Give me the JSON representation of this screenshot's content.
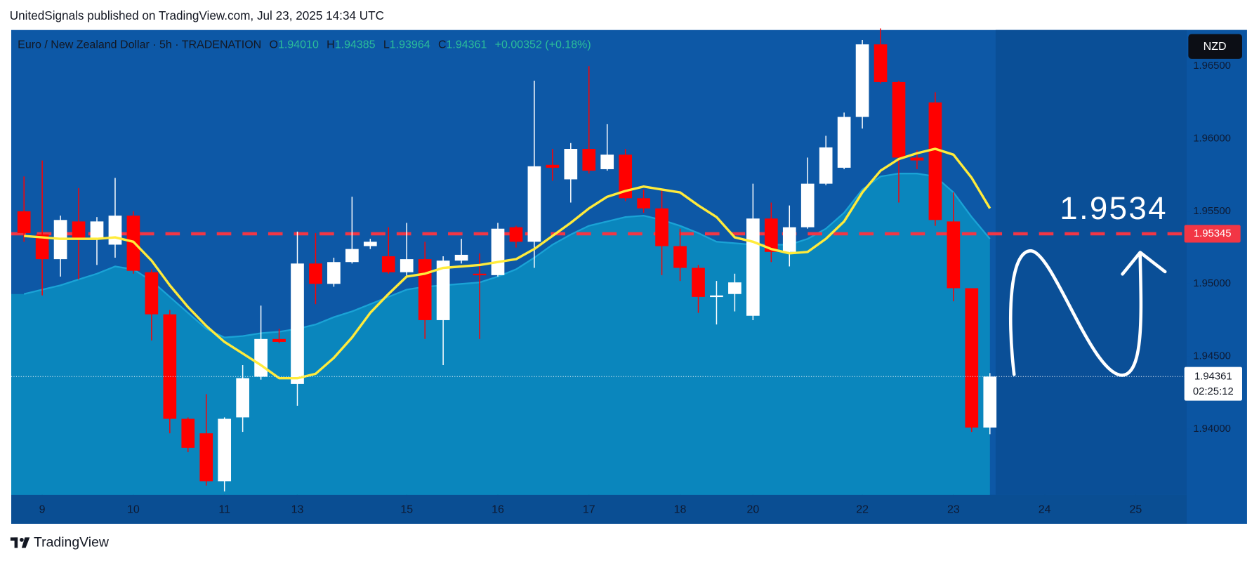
{
  "chart_data": {
    "type": "candlestick",
    "header_text": "UnitedSignals published on TradingView.com, Jul 23, 2025 14:34 UTC",
    "symbol_label": "Euro / New Zealand Dollar · 5h · TRADENATION",
    "legend": {
      "o_label": "O",
      "open": "1.94010",
      "h_label": "H",
      "high": "1.94385",
      "l_label": "L",
      "low": "1.93964",
      "c_label": "C",
      "close": "1.94361",
      "change": "+0.00352 (+0.18%)"
    },
    "currency": "NZD",
    "up_color": "#ffffff",
    "down_color": "#ff0000",
    "open": [
      1.955,
      1.9534,
      1.9517,
      1.9543,
      1.9531,
      1.9527,
      1.9547,
      1.9508,
      1.9479,
      1.9407,
      1.9397,
      1.9364,
      1.9408,
      1.9436,
      1.9462,
      1.9431,
      1.9514,
      1.95,
      1.9515,
      1.9526,
      1.9519,
      1.9508,
      1.9517,
      1.9475,
      1.9516,
      1.9507,
      1.9506,
      1.9539,
      1.9529,
      1.9582,
      1.9572,
      1.9593,
      1.9579,
      1.9589,
      1.9559,
      1.9552,
      1.9526,
      1.9511,
      1.9491,
      1.9493,
      1.9478,
      1.9545,
      1.9522,
      1.9539,
      1.9569,
      1.958,
      1.9615,
      1.9665,
      1.9639,
      1.9587,
      1.9625,
      1.9543,
      1.9497,
      1.9401
    ],
    "high": [
      1.9574,
      1.9585,
      1.9547,
      1.9566,
      1.9546,
      1.9573,
      1.955,
      1.951,
      1.9482,
      1.9408,
      1.9424,
      1.9408,
      1.9444,
      1.9485,
      1.9469,
      1.9536,
      1.9535,
      1.9518,
      1.956,
      1.9531,
      1.9539,
      1.9542,
      1.9529,
      1.9519,
      1.9531,
      1.9521,
      1.9542,
      1.954,
      1.964,
      1.9593,
      1.9597,
      1.965,
      1.961,
      1.9593,
      1.9565,
      1.9565,
      1.9538,
      1.9513,
      1.9502,
      1.9507,
      1.9569,
      1.9556,
      1.9554,
      1.9587,
      1.9602,
      1.9618,
      1.9668,
      1.9676,
      1.964,
      1.9592,
      1.9632,
      1.9563,
      1.9497,
      1.94385
    ],
    "low": [
      1.9529,
      1.9492,
      1.9505,
      1.9503,
      1.9513,
      1.9518,
      1.9507,
      1.9461,
      1.9397,
      1.9384,
      1.9361,
      1.9357,
      1.9398,
      1.9434,
      1.9459,
      1.9416,
      1.9486,
      1.9498,
      1.9514,
      1.9524,
      1.9507,
      1.9505,
      1.9462,
      1.9444,
      1.9514,
      1.9462,
      1.9505,
      1.9525,
      1.9511,
      1.9571,
      1.9556,
      1.9576,
      1.9578,
      1.9557,
      1.9549,
      1.9506,
      1.9502,
      1.948,
      1.9472,
      1.9481,
      1.9475,
      1.9515,
      1.9512,
      1.9538,
      1.9568,
      1.9579,
      1.9607,
      1.9638,
      1.9556,
      1.9579,
      1.954,
      1.9488,
      1.9398,
      1.93964
    ],
    "close": [
      1.9535,
      1.9517,
      1.9544,
      1.9531,
      1.9543,
      1.9547,
      1.9509,
      1.9479,
      1.9407,
      1.9387,
      1.9364,
      1.9407,
      1.9435,
      1.9462,
      1.946,
      1.9514,
      1.95,
      1.9515,
      1.9524,
      1.9529,
      1.9508,
      1.9517,
      1.9475,
      1.9516,
      1.952,
      1.9506,
      1.9538,
      1.9529,
      1.9581,
      1.958,
      1.9593,
      1.9578,
      1.9589,
      1.9559,
      1.9552,
      1.9526,
      1.9511,
      1.9491,
      1.9492,
      1.9501,
      1.9545,
      1.9522,
      1.9539,
      1.9569,
      1.9594,
      1.9615,
      1.9665,
      1.9639,
      1.9587,
      1.9585,
      1.9544,
      1.9497,
      1.9401,
      1.94361
    ],
    "ma": {
      "color": "#ffeb3b",
      "values": [
        1.9533,
        1.9532,
        1.9531,
        1.9531,
        1.9531,
        1.9532,
        1.9529,
        1.9516,
        1.9499,
        1.9484,
        1.9471,
        1.946,
        1.9452,
        1.9444,
        1.9435,
        1.9435,
        1.9438,
        1.9449,
        1.9463,
        1.948,
        1.9493,
        1.9505,
        1.9507,
        1.9511,
        1.9512,
        1.9513,
        1.9515,
        1.9517,
        1.9524,
        1.9533,
        1.9542,
        1.9552,
        1.956,
        1.9564,
        1.9567,
        1.9565,
        1.9563,
        1.9554,
        1.9546,
        1.9532,
        1.9529,
        1.9524,
        1.9521,
        1.9522,
        1.9531,
        1.9543,
        1.9563,
        1.9578,
        1.9586,
        1.959,
        1.9593,
        1.9589,
        1.9573,
        1.9552
      ]
    },
    "area": {
      "color": "#0a86bd",
      "values": [
        1.9493,
        1.9496,
        1.9499,
        1.9503,
        1.9507,
        1.9512,
        1.951,
        1.9502,
        1.9491,
        1.948,
        1.9469,
        1.9463,
        1.9464,
        1.9466,
        1.9467,
        1.9469,
        1.9472,
        1.9477,
        1.9481,
        1.9486,
        1.9491,
        1.9496,
        1.9498,
        1.9499,
        1.95,
        1.9501,
        1.9505,
        1.951,
        1.9518,
        1.9527,
        1.9534,
        1.954,
        1.9543,
        1.9546,
        1.9547,
        1.9544,
        1.954,
        1.9535,
        1.9529,
        1.9528,
        1.9527,
        1.9527,
        1.9527,
        1.9531,
        1.9538,
        1.9549,
        1.9565,
        1.9574,
        1.9576,
        1.9576,
        1.9574,
        1.9563,
        1.9546,
        1.9531
      ]
    },
    "xlim": [
      -0.7,
      63.8
    ],
    "ylim": [
      1.93546,
      1.96749
    ],
    "yticks": [
      {
        "value": 1.94,
        "label": "1.94000"
      },
      {
        "value": 1.945,
        "label": "1.94500"
      },
      {
        "value": 1.95,
        "label": "1.95000"
      },
      {
        "value": 1.955,
        "label": "1.95500"
      },
      {
        "value": 1.96,
        "label": "1.96000"
      },
      {
        "value": 1.965,
        "label": "1.96500"
      }
    ],
    "xticks": [
      {
        "value": 1,
        "label": "9"
      },
      {
        "value": 6,
        "label": "10"
      },
      {
        "value": 11,
        "label": "11"
      },
      {
        "value": 15,
        "label": "13"
      },
      {
        "value": 21,
        "label": "15"
      },
      {
        "value": 26,
        "label": "16"
      },
      {
        "value": 31,
        "label": "17"
      },
      {
        "value": 36,
        "label": "18"
      },
      {
        "value": 40,
        "label": "20"
      },
      {
        "value": 46,
        "label": "22"
      },
      {
        "value": 51,
        "label": "23"
      },
      {
        "value": 56,
        "label": "24"
      },
      {
        "value": 61,
        "label": "25"
      }
    ],
    "hline": {
      "value": 1.95345,
      "label": "1.95345",
      "color": "#f23645"
    },
    "annotation": "1.9534",
    "last_price_label": "1.94361",
    "countdown": "02:25:12",
    "footer": "TradingView"
  }
}
